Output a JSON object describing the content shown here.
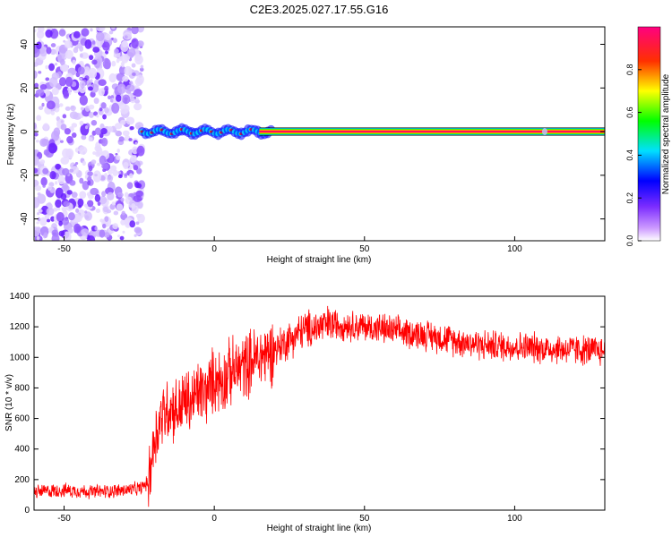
{
  "title": "C2E3.2025.027.17.55.G16",
  "chart_data": [
    {
      "type": "heatmap",
      "xlabel": "Height of straight line (km)",
      "ylabel": "Frequency (Hz)",
      "xlim": [
        -60,
        130
      ],
      "ylim": [
        -50,
        48
      ],
      "xticks": [
        -50,
        0,
        50,
        100
      ],
      "yticks": [
        -40,
        -20,
        0,
        20,
        40
      ],
      "noise_region_x": [
        -60,
        -24
      ],
      "signal_line": {
        "frequency": 0,
        "x_start": -24,
        "x_end": 130
      },
      "colorbar": {
        "label": "Normalized spectral amplitude",
        "range": [
          0.0,
          1.0
        ],
        "ticks": [
          0.0,
          0.2,
          0.4,
          0.6,
          0.8
        ],
        "colors": [
          "#ffffff",
          "#9b30ff",
          "#0000ff",
          "#00ffff",
          "#00ff00",
          "#ffff00",
          "#ff0000",
          "#ff0080"
        ]
      }
    },
    {
      "type": "line",
      "xlabel": "Height of straight line (km)",
      "ylabel": "SNR (10 * v/v)",
      "xlim": [
        -60,
        130
      ],
      "ylim": [
        0,
        1400
      ],
      "xticks": [
        -50,
        0,
        50,
        100
      ],
      "yticks": [
        0,
        200,
        400,
        600,
        800,
        1000,
        1200,
        1400
      ],
      "color": "#ff0000",
      "series": [
        {
          "x": [
            -60,
            -50,
            -40,
            -30,
            -25,
            -22,
            -20,
            -18,
            -15,
            -12,
            -10,
            -8,
            -5,
            -3,
            0,
            3,
            5,
            8,
            10,
            15,
            20,
            25,
            30,
            35,
            40,
            45,
            50,
            55,
            60,
            70,
            80,
            90,
            100,
            110,
            120,
            130
          ],
          "values": [
            120,
            130,
            120,
            130,
            140,
            180,
            450,
            600,
            680,
            650,
            720,
            700,
            780,
            760,
            860,
            850,
            900,
            920,
            950,
            1000,
            1050,
            1120,
            1180,
            1200,
            1220,
            1210,
            1200,
            1190,
            1170,
            1150,
            1110,
            1080,
            1070,
            1060,
            1050,
            1040
          ]
        }
      ]
    }
  ]
}
